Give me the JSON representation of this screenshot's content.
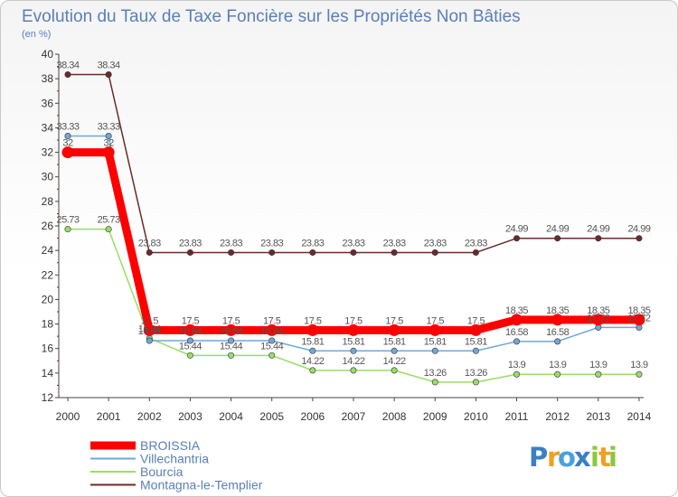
{
  "chart_data": {
    "type": "line",
    "title": "Evolution du Taux de Taxe Foncière sur les Propriétés Non Bâties",
    "ylabel": "(en %)",
    "xlabel": "",
    "ylim": [
      12,
      40
    ],
    "yticks": [
      12,
      14,
      16,
      18,
      20,
      22,
      24,
      26,
      28,
      30,
      32,
      34,
      36,
      38,
      40
    ],
    "x": [
      "2000",
      "2001",
      "2002",
      "2003",
      "2004",
      "2005",
      "2006",
      "2007",
      "2008",
      "2009",
      "2010",
      "2011",
      "2012",
      "2013",
      "2014"
    ],
    "grid": false,
    "legend_position": "bottom-left",
    "series": [
      {
        "name": "Montagna-le-Templier",
        "color": "#6b2a2a",
        "values": [
          38.34,
          38.34,
          23.83,
          23.83,
          23.83,
          23.83,
          23.83,
          23.83,
          23.83,
          23.83,
          23.83,
          24.99,
          24.99,
          24.99,
          24.99
        ],
        "labels": [
          "38.34",
          "38.34",
          "23.83",
          "23.83",
          "23.83",
          "23.83",
          "23.83",
          "23.83",
          "23.83",
          "23.83",
          "23.83",
          "24.99",
          "24.99",
          "24.99",
          "24.99"
        ]
      },
      {
        "name": "Bourcia",
        "color": "#99dd66",
        "values": [
          25.73,
          25.73,
          16.84,
          15.44,
          15.44,
          15.44,
          14.22,
          14.22,
          14.22,
          13.26,
          13.26,
          13.9,
          13.9,
          13.9,
          13.9
        ],
        "labels": [
          "25.73",
          "25.73",
          "16.84",
          "15.44",
          "15.44",
          "15.44",
          "14.22",
          "14.22",
          "14.22",
          "13.26",
          "13.26",
          "13.9",
          "13.9",
          "13.9",
          "13.9"
        ]
      },
      {
        "name": "Villechantria",
        "color": "#6fa8d8",
        "values": [
          33.33,
          33.33,
          16.64,
          16.64,
          16.64,
          16.64,
          15.81,
          15.81,
          15.81,
          15.81,
          15.81,
          16.58,
          16.58,
          17.72,
          17.72
        ],
        "labels": [
          "33.33",
          "33.33",
          "16.64",
          "16.64",
          "16.64",
          "16.64",
          "15.81",
          "15.81",
          "15.81",
          "15.81",
          "15.81",
          "16.58",
          "16.58",
          "17.72",
          "17.72"
        ]
      },
      {
        "name": "BROISSIA",
        "color": "#ff0000",
        "values": [
          32,
          32,
          17.5,
          17.5,
          17.5,
          17.5,
          17.5,
          17.5,
          17.5,
          17.5,
          17.5,
          18.35,
          18.35,
          18.35,
          18.35
        ],
        "labels": [
          "32",
          "32",
          "17.5",
          "17.5",
          "17.5",
          "17.5",
          "17.5",
          "17.5",
          "17.5",
          "17.5",
          "17.5",
          "18.35",
          "18.35",
          "18.35",
          "18.35"
        ]
      }
    ],
    "legend": [
      "BROISSIA",
      "Villechantria",
      "Bourcia",
      "Montagna-le-Templier"
    ]
  },
  "logo": {
    "letters": [
      "P",
      "r",
      "o",
      "x",
      "i",
      "t",
      "i"
    ],
    "colors": [
      "#3b7fc4",
      "#f0a020",
      "#4aa0e0",
      "#3b7fc4",
      "#8cc63f",
      "#f0a020",
      "#8cc63f"
    ]
  }
}
